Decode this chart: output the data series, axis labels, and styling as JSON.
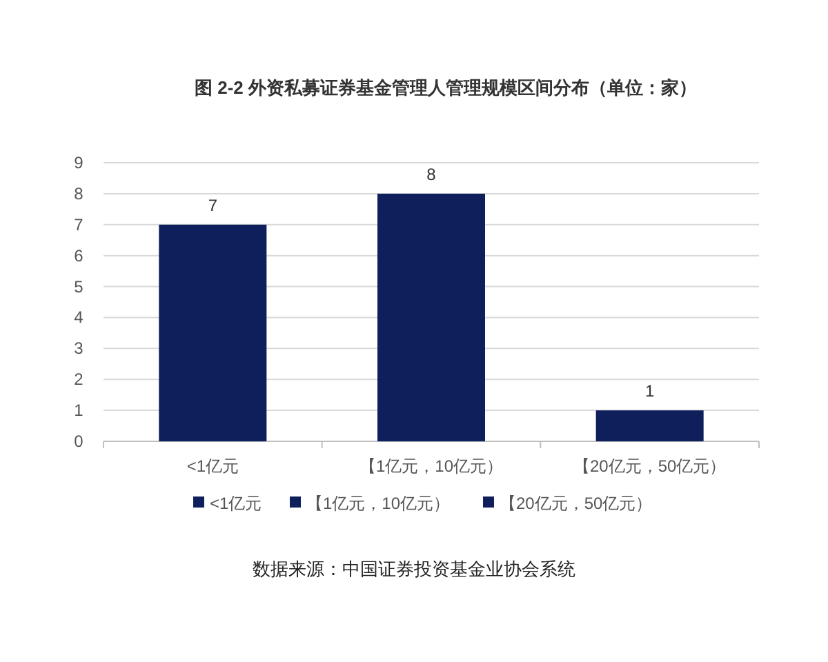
{
  "chart_data": {
    "type": "bar",
    "title": "图 2-2 外资私募证券基金管理人管理规模区间分布（单位：家）",
    "categories": [
      "<1亿元",
      "【1亿元，10亿元）",
      "【20亿元，50亿元）"
    ],
    "series": [
      {
        "name": "<1亿元",
        "color": "#0e1f5b",
        "values": [
          7,
          null,
          null
        ]
      },
      {
        "name": "【1亿元，10亿元）",
        "color": "#0e1f5b",
        "values": [
          null,
          8,
          null
        ]
      },
      {
        "name": "【20亿元，50亿元）",
        "color": "#0e1f5b",
        "values": [
          null,
          null,
          1
        ]
      }
    ],
    "ylim": [
      0,
      9
    ],
    "yticks": [
      0,
      1,
      2,
      3,
      4,
      5,
      6,
      7,
      8,
      9
    ],
    "grid": "y",
    "data_labels": true,
    "legend": "bottom",
    "annotations": [
      "数据来源：中国证券投资基金业协会系统"
    ]
  }
}
